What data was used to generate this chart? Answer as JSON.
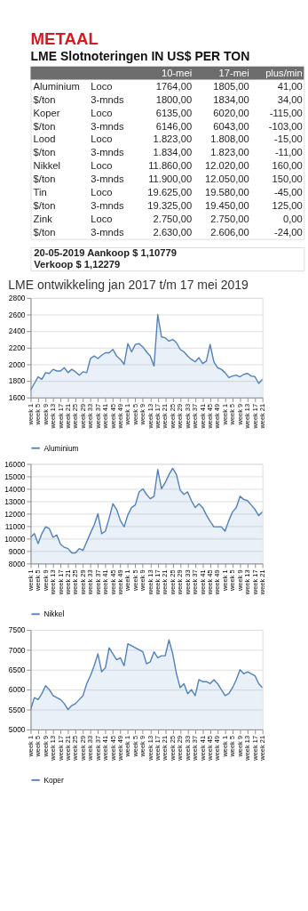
{
  "chart_data": [
    {
      "type": "other",
      "title": "METAAL",
      "subtitle": "LME Slotnoteringen IN US$ PER TON",
      "categories": [
        null,
        null,
        "10-mei",
        "17-mei",
        "plus/min"
      ],
      "annotations": [
        "Aluminium",
        "Loco",
        "1764,00",
        "1805,00",
        "41,00",
        "$/ton",
        "3-mnds",
        "1800,00",
        "1834,00",
        "34,00",
        "Koper",
        "Loco",
        "6135,00",
        "6020,00",
        "-115,00",
        "$/ton",
        "3-mnds",
        "6146,00",
        "6043,00",
        "-103,00",
        "Lood",
        "Loco",
        "1.823,00",
        "1.808,00",
        "-15,00",
        "$/ton",
        "3-mnds",
        "1.834,00",
        "1.823,00",
        "-11,00",
        "Nikkel",
        "Loco",
        "11.860,00",
        "12.020,00",
        "160,00",
        "$/ton",
        "3-mnds",
        "11.900,00",
        "12.050,00",
        "150,00",
        "Tin",
        "Loco",
        "19.625,00",
        "19.580,00",
        "-45,00",
        "$/ton",
        "3-mnds",
        "19.325,00",
        "19.450,00",
        "125,00",
        "Zink",
        "Loco",
        "2.750,00",
        "2.750,00",
        "0,00",
        "$/ton",
        "3-mnds",
        "2.630,00",
        "2.606,00",
        "-24,00"
      ]
    },
    {
      "type": "other",
      "annotations": [
        "20-05-2019 Aankoop $ 1,10779",
        "Verkoop $ 1,12279"
      ]
    },
    {
      "type": "area",
      "title": "LME ontwikkeling jan 2017 t/m 17 mei 2019",
      "grid": "y",
      "legend": "bottom",
      "ylim": [
        1600,
        2800
      ],
      "yticks": [
        1600,
        1800,
        2000,
        2200,
        2400,
        2600,
        2800
      ],
      "categories": [
        "week 1",
        null,
        "week 5",
        null,
        "week 9",
        null,
        "week 13",
        null,
        "week 17",
        null,
        "week 21",
        null,
        "week 25",
        null,
        "week 29",
        null,
        "week 33",
        null,
        "week 37",
        null,
        "week 41",
        null,
        "week 45",
        null,
        "week 49",
        null,
        "week 1",
        null,
        "week 5",
        null,
        "week 9",
        null,
        "week 13",
        null,
        "week 17",
        null,
        "week 21",
        null,
        "week 25",
        null,
        "week 29",
        null,
        "week 33",
        null,
        "week 37",
        null,
        "week 41",
        null,
        "week 45",
        null,
        "week 49",
        null,
        "week 1",
        null,
        "week 5",
        null,
        "week 9",
        null,
        "week 13",
        null,
        "week 17",
        null,
        "week 21"
      ],
      "series": [
        {
          "name": "Aluminium",
          "color": "#4f81bd",
          "values": [
            1690,
            1770,
            1850,
            1820,
            1900,
            1890,
            1940,
            1920,
            1920,
            1960,
            1900,
            1940,
            1910,
            1870,
            1910,
            1900,
            2070,
            2100,
            2070,
            2110,
            2140,
            2140,
            2180,
            2100,
            2060,
            2000,
            2250,
            2150,
            2240,
            2250,
            2210,
            2150,
            2100,
            1980,
            2600,
            2330,
            2320,
            2280,
            2300,
            2260,
            2180,
            2150,
            2100,
            2060,
            2030,
            2080,
            2010,
            2040,
            2240,
            2030,
            1960,
            1940,
            1900,
            1840,
            1860,
            1870,
            1850,
            1880,
            1890,
            1860,
            1850,
            1770,
            1820
          ]
        }
      ]
    },
    {
      "type": "area",
      "grid": "y",
      "legend": "bottom",
      "ylim": [
        8000,
        16000
      ],
      "yticks": [
        8000,
        9000,
        10000,
        11000,
        12000,
        13000,
        14000,
        15000,
        16000
      ],
      "categories": [
        "week 1",
        null,
        "week 5",
        null,
        "week 9",
        null,
        "week 13",
        null,
        "week 17",
        null,
        "week 21",
        null,
        "week 25",
        null,
        "week 29",
        null,
        "week 33",
        null,
        "week 37",
        null,
        "week 41",
        null,
        "week 45",
        null,
        "week 49",
        null,
        "week 1",
        null,
        "week 5",
        null,
        "week 9",
        null,
        "week 13",
        null,
        "week 17",
        null,
        "week 21",
        null,
        "week 25",
        null,
        "week 29",
        null,
        "week 33",
        null,
        "week 37",
        null,
        "week 41",
        null,
        "week 45",
        null,
        "week 49",
        null,
        "week 1",
        null,
        "week 5",
        null,
        "week 9",
        null,
        "week 13",
        null,
        "week 17",
        null,
        "week 21"
      ],
      "series": [
        {
          "name": "Nikkel",
          "color": "#4f81bd",
          "values": [
            10100,
            10400,
            9600,
            10400,
            10950,
            10800,
            10100,
            10300,
            9550,
            9300,
            9200,
            8850,
            8850,
            9200,
            9050,
            9750,
            10450,
            11100,
            12000,
            10400,
            10600,
            11650,
            12800,
            12350,
            11450,
            10950,
            11900,
            12500,
            12700,
            13750,
            14000,
            13550,
            13200,
            13400,
            15550,
            14000,
            14500,
            15150,
            15650,
            15150,
            13900,
            13550,
            13750,
            13050,
            12500,
            12800,
            12500,
            11900,
            11400,
            10950,
            10950,
            10950,
            10600,
            11450,
            12150,
            12500,
            13400,
            13150,
            13050,
            12700,
            12350,
            11850,
            12150
          ]
        }
      ]
    },
    {
      "type": "area",
      "grid": "y",
      "legend": "bottom",
      "ylim": [
        5000,
        7500
      ],
      "yticks": [
        5000,
        5500,
        6000,
        6500,
        7000,
        7500
      ],
      "categories": [
        "week 1",
        null,
        "week 5",
        null,
        "week 9",
        null,
        "week 13",
        null,
        "week 17",
        null,
        "week 21",
        null,
        "week 25",
        null,
        "week 29",
        null,
        "week 33",
        null,
        "week 37",
        null,
        "week 41",
        null,
        "week 45",
        null,
        "week 49",
        null,
        "week 1",
        null,
        "week 5",
        null,
        "week 9",
        null,
        "week 13",
        null,
        "week 17",
        null,
        "week 21",
        null,
        "week 25",
        null,
        "week 29",
        null,
        "week 33",
        null,
        "week 37",
        null,
        "week 41",
        null,
        "week 45",
        null,
        "week 49",
        null,
        "week 1",
        null,
        "week 5",
        null,
        "week 9",
        null,
        "week 13",
        null,
        "week 17",
        null,
        "week 21"
      ],
      "series": [
        {
          "name": "Koper",
          "color": "#4f81bd",
          "values": [
            5500,
            5800,
            5750,
            5900,
            6100,
            6000,
            5850,
            5800,
            5750,
            5650,
            5500,
            5600,
            5650,
            5750,
            5850,
            6150,
            6350,
            6600,
            6900,
            6450,
            6550,
            7050,
            6900,
            6750,
            6800,
            6600,
            7150,
            7100,
            7050,
            7000,
            6950,
            6650,
            6700,
            6950,
            6800,
            6850,
            6850,
            7250,
            6900,
            6400,
            6050,
            6150,
            5900,
            6000,
            5850,
            6250,
            6200,
            6200,
            6150,
            6250,
            6150,
            6000,
            5850,
            5900,
            6050,
            6250,
            6500,
            6400,
            6450,
            6400,
            6350,
            6150,
            6050
          ]
        }
      ]
    }
  ]
}
